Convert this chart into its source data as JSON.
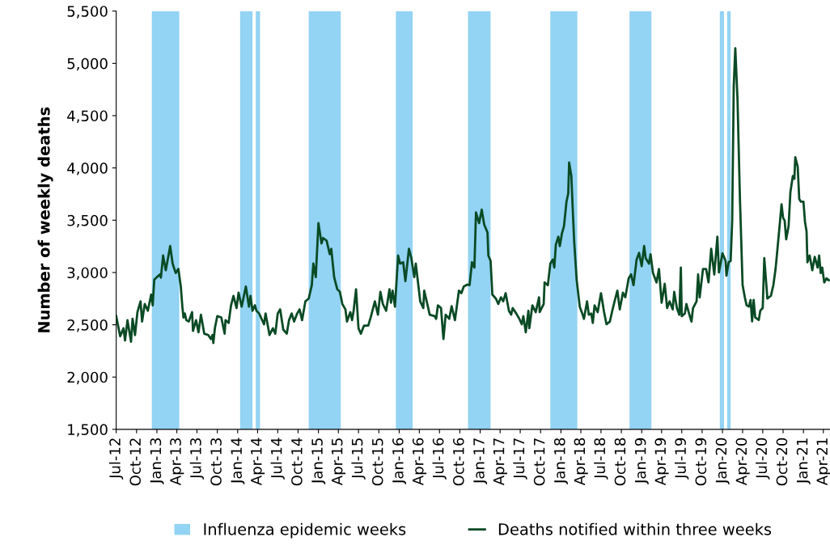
{
  "chart_data": {
    "type": "line",
    "ylabel": "Number of weekly deaths",
    "x": [
      "2012-07-01",
      "2012-07-19",
      "2012-08-03",
      "2012-08-10",
      "2012-08-21",
      "2012-09-06",
      "2012-09-13",
      "2012-09-24",
      "2012-10-05",
      "2012-10-19",
      "2012-10-26",
      "2012-11-07",
      "2012-11-21",
      "2012-12-06",
      "2012-12-13",
      "2012-12-20",
      "2013-01-01",
      "2013-01-15",
      "2013-01-19",
      "2013-01-29",
      "2013-02-10",
      "2013-03-02",
      "2013-03-13",
      "2013-03-27",
      "2013-04-08",
      "2013-04-19",
      "2013-04-26",
      "2013-05-01",
      "2013-05-07",
      "2013-05-14",
      "2013-05-25",
      "2013-06-09",
      "2013-06-13",
      "2013-06-27",
      "2013-07-08",
      "2013-07-19",
      "2013-08-03",
      "2013-08-21",
      "2013-09-02",
      "2013-09-09",
      "2013-09-13",
      "2013-09-20",
      "2013-10-01",
      "2013-10-19",
      "2013-11-03",
      "2013-11-07",
      "2013-11-21",
      "2013-12-02",
      "2013-12-13",
      "2013-12-27",
      "2014-01-05",
      "2014-01-19",
      "2014-02-07",
      "2014-02-21",
      "2014-02-28",
      "2014-03-09",
      "2014-03-20",
      "2014-03-27",
      "2014-04-08",
      "2014-04-19",
      "2014-04-30",
      "2014-05-07",
      "2014-05-25",
      "2014-06-09",
      "2014-06-20",
      "2014-07-01",
      "2014-07-12",
      "2014-07-26",
      "2014-08-11",
      "2014-08-21",
      "2014-09-02",
      "2014-09-13",
      "2014-09-27",
      "2014-10-08",
      "2014-10-19",
      "2014-11-03",
      "2014-11-18",
      "2014-12-02",
      "2014-12-09",
      "2014-12-20",
      "2015-01-01",
      "2015-01-15",
      "2015-01-22",
      "2015-02-07",
      "2015-02-21",
      "2015-02-28",
      "2015-03-13",
      "2015-03-27",
      "2015-04-08",
      "2015-04-19",
      "2015-05-03",
      "2015-05-10",
      "2015-05-25",
      "2015-06-02",
      "2015-06-09",
      "2015-06-20",
      "2015-07-01",
      "2015-07-12",
      "2015-07-26",
      "2015-08-14",
      "2015-08-25",
      "2015-09-13",
      "2015-09-27",
      "2015-10-08",
      "2015-10-19",
      "2015-11-03",
      "2015-11-18",
      "2015-11-25",
      "2015-12-02",
      "2015-12-13",
      "2015-12-27",
      "2016-01-05",
      "2016-01-19",
      "2016-01-29",
      "2016-02-14",
      "2016-02-25",
      "2016-03-09",
      "2016-03-16",
      "2016-04-05",
      "2016-04-19",
      "2016-04-23",
      "2016-05-07",
      "2016-05-18",
      "2016-06-09",
      "2016-06-16",
      "2016-06-24",
      "2016-07-08",
      "2016-07-19",
      "2016-07-29",
      "2016-08-14",
      "2016-08-25",
      "2016-09-09",
      "2016-09-27",
      "2016-10-08",
      "2016-10-19",
      "2016-11-03",
      "2016-11-14",
      "2016-11-25",
      "2016-12-06",
      "2016-12-13",
      "2016-12-27",
      "2017-01-08",
      "2017-01-19",
      "2017-02-03",
      "2017-02-07",
      "2017-02-17",
      "2017-02-25",
      "2017-03-13",
      "2017-03-24",
      "2017-04-05",
      "2017-04-15",
      "2017-04-26",
      "2017-05-11",
      "2017-05-21",
      "2017-05-28",
      "2017-06-13",
      "2017-06-27",
      "2017-07-08",
      "2017-07-15",
      "2017-07-26",
      "2017-08-07",
      "2017-08-11",
      "2017-08-25",
      "2017-09-09",
      "2017-09-24",
      "2017-09-27",
      "2017-10-15",
      "2017-10-19",
      "2017-11-03",
      "2017-11-14",
      "2017-11-25",
      "2017-12-02",
      "2017-12-09",
      "2017-12-20",
      "2017-12-27",
      "2018-01-05",
      "2018-01-15",
      "2018-01-26",
      "2018-02-03",
      "2018-02-07",
      "2018-02-17",
      "2018-02-25",
      "2018-03-02",
      "2018-03-13",
      "2018-03-27",
      "2018-04-05",
      "2018-04-15",
      "2018-04-29",
      "2018-05-07",
      "2018-05-18",
      "2018-05-25",
      "2018-06-02",
      "2018-06-16",
      "2018-07-01",
      "2018-07-15",
      "2018-07-26",
      "2018-08-10",
      "2018-08-21",
      "2018-09-02",
      "2018-09-13",
      "2018-09-24",
      "2018-10-08",
      "2018-10-19",
      "2018-11-03",
      "2018-11-14",
      "2018-11-25",
      "2018-12-09",
      "2018-12-20",
      "2019-01-01",
      "2019-01-12",
      "2019-01-19",
      "2019-02-03",
      "2019-02-10",
      "2019-02-21",
      "2019-03-09",
      "2019-03-20",
      "2019-04-01",
      "2019-04-15",
      "2019-04-26",
      "2019-05-07",
      "2019-05-21",
      "2019-05-28",
      "2019-06-09",
      "2019-06-20",
      "2019-06-27",
      "2019-07-01",
      "2019-07-15",
      "2019-07-22",
      "2019-08-03",
      "2019-08-14",
      "2019-08-21",
      "2019-09-06",
      "2019-09-13",
      "2019-09-20",
      "2019-10-05",
      "2019-10-19",
      "2019-10-30",
      "2019-11-11",
      "2019-11-25",
      "2019-12-09",
      "2019-12-16",
      "2020-01-01",
      "2020-01-15",
      "2020-01-19",
      "2020-01-29",
      "2020-02-07",
      "2020-02-14",
      "2020-02-21",
      "2020-02-28",
      "2020-03-09",
      "2020-03-20",
      "2020-04-01",
      "2020-04-11",
      "2020-04-19",
      "2020-04-29",
      "2020-05-07",
      "2020-05-14",
      "2020-05-21",
      "2020-05-28",
      "2020-06-13",
      "2020-06-20",
      "2020-07-01",
      "2020-07-08",
      "2020-07-22",
      "2020-08-07",
      "2020-08-18",
      "2020-08-28",
      "2020-09-13",
      "2020-09-24",
      "2020-10-01",
      "2020-10-08",
      "2020-10-15",
      "2020-10-26",
      "2020-11-03",
      "2020-11-14",
      "2020-11-21",
      "2020-11-25",
      "2020-12-06",
      "2020-12-13",
      "2020-12-20",
      "2021-01-01",
      "2021-01-08",
      "2021-01-15",
      "2021-01-19",
      "2021-01-29",
      "2021-02-10",
      "2021-02-21",
      "2021-03-06",
      "2021-03-13",
      "2021-03-20",
      "2021-03-27",
      "2021-04-05",
      "2021-04-15",
      "2021-04-26"
    ],
    "series": [
      {
        "name": "Deaths notified within three weeks",
        "color": "#0a4a24",
        "values": [
          2583,
          2390,
          2467,
          2350,
          2544,
          2338,
          2557,
          2402,
          2621,
          2724,
          2531,
          2699,
          2634,
          2789,
          2686,
          2931,
          2956,
          2982,
          2951,
          3162,
          3021,
          3253,
          3085,
          2995,
          3034,
          2866,
          2673,
          2570,
          2608,
          2544,
          2531,
          2621,
          2441,
          2544,
          2428,
          2596,
          2415,
          2402,
          2364,
          2402,
          2325,
          2467,
          2583,
          2570,
          2415,
          2544,
          2518,
          2686,
          2776,
          2660,
          2807,
          2673,
          2866,
          2673,
          2776,
          2634,
          2686,
          2634,
          2608,
          2557,
          2505,
          2608,
          2402,
          2467,
          2415,
          2608,
          2647,
          2454,
          2415,
          2544,
          2608,
          2531,
          2608,
          2647,
          2544,
          2724,
          2750,
          2879,
          3085,
          2956,
          3472,
          3278,
          3330,
          3304,
          3175,
          3227,
          2956,
          2840,
          2815,
          2699,
          2647,
          2531,
          2621,
          2544,
          2634,
          2840,
          2467,
          2415,
          2492,
          2492,
          2570,
          2724,
          2596,
          2815,
          2699,
          2634,
          2840,
          2711,
          2827,
          2673,
          3162,
          3085,
          3098,
          2918,
          3227,
          3137,
          2956,
          3085,
          2724,
          2660,
          2827,
          2699,
          2596,
          2583,
          2557,
          2686,
          2660,
          2364,
          2596,
          2557,
          2678,
          2544,
          2827,
          2802,
          2866,
          2884,
          2879,
          3098,
          3047,
          3575,
          3472,
          3601,
          3459,
          3382,
          3162,
          3111,
          2789,
          2750,
          2699,
          2763,
          2724,
          2802,
          2634,
          2596,
          2660,
          2608,
          2557,
          2505,
          2583,
          2428,
          2634,
          2467,
          2686,
          2621,
          2763,
          2621,
          2699,
          2905,
          2879,
          3085,
          3124,
          3047,
          3266,
          3343,
          3253,
          3369,
          3446,
          3678,
          3755,
          4052,
          3923,
          3523,
          3291,
          2931,
          2673,
          2621,
          2557,
          2724,
          2596,
          2608,
          2518,
          2686,
          2621,
          2802,
          2621,
          2505,
          2531,
          2634,
          2737,
          2827,
          2647,
          2807,
          2763,
          2943,
          2982,
          2879,
          3124,
          3188,
          3060,
          3253,
          3137,
          3085,
          3175,
          2995,
          2905,
          3034,
          2711,
          2892,
          2660,
          2724,
          2647,
          2815,
          2660,
          2596,
          3047,
          2583,
          2608,
          2699,
          2608,
          2531,
          2660,
          2724,
          2982,
          2763,
          3034,
          3034,
          2905,
          3227,
          2982,
          3343,
          3000,
          3183,
          3111,
          2970,
          3098,
          3111,
          3497,
          4784,
          5145,
          4656,
          3703,
          2880,
          2764,
          2687,
          2674,
          2738,
          2532,
          2738,
          2571,
          2545,
          2635,
          2661,
          3137,
          2751,
          2777,
          2880,
          3034,
          3394,
          3652,
          3523,
          3497,
          3317,
          3446,
          3768,
          3922,
          3896,
          4102,
          4012,
          3703,
          3678,
          3678,
          3484,
          3394,
          3098,
          3163,
          3021,
          3150,
          3047,
          3163,
          2995,
          3047,
          2905,
          2944,
          2926
        ]
      }
    ],
    "bands": [
      {
        "axis": "x",
        "from": "2012-12-09",
        "to": "2013-04-12",
        "label": "Influenza epidemic weeks",
        "color": "#93d3f3"
      },
      {
        "axis": "x",
        "from": "2014-01-12",
        "to": "2014-03-09",
        "color": "#93d3f3"
      },
      {
        "axis": "x",
        "from": "2014-03-24",
        "to": "2014-04-12",
        "color": "#93d3f3"
      },
      {
        "axis": "x",
        "from": "2014-11-18",
        "to": "2015-04-12",
        "color": "#93d3f3"
      },
      {
        "axis": "x",
        "from": "2015-12-17",
        "to": "2016-03-02",
        "color": "#93d3f3"
      },
      {
        "axis": "x",
        "from": "2016-11-07",
        "to": "2017-02-17",
        "color": "#93d3f3"
      },
      {
        "axis": "x",
        "from": "2017-11-14",
        "to": "2018-03-16",
        "color": "#93d3f3"
      },
      {
        "axis": "x",
        "from": "2018-11-07",
        "to": "2019-02-14",
        "color": "#93d3f3"
      },
      {
        "axis": "x",
        "from": "2019-12-20",
        "to": "2020-01-08",
        "color": "#93d3f3"
      },
      {
        "axis": "x",
        "from": "2020-01-22",
        "to": "2020-02-07",
        "color": "#93d3f3"
      }
    ],
    "xlim": [
      "2012-07-01",
      "2021-05-01"
    ],
    "xticks": [
      {
        "value": "2012-07-01",
        "label": "Jul-12"
      },
      {
        "value": "2012-10-01",
        "label": "Oct-12"
      },
      {
        "value": "2013-01-01",
        "label": "Jan-13"
      },
      {
        "value": "2013-04-01",
        "label": "Apr-13"
      },
      {
        "value": "2013-07-01",
        "label": "Jul-13"
      },
      {
        "value": "2013-10-01",
        "label": "Oct-13"
      },
      {
        "value": "2014-01-01",
        "label": "Jan-14"
      },
      {
        "value": "2014-04-01",
        "label": "Apr-14"
      },
      {
        "value": "2014-07-01",
        "label": "Jul-14"
      },
      {
        "value": "2014-10-01",
        "label": "Oct-14"
      },
      {
        "value": "2015-01-01",
        "label": "Jan-15"
      },
      {
        "value": "2015-04-01",
        "label": "Apr-15"
      },
      {
        "value": "2015-07-01",
        "label": "Jul-15"
      },
      {
        "value": "2015-10-01",
        "label": "Oct-15"
      },
      {
        "value": "2016-01-01",
        "label": "Jan-16"
      },
      {
        "value": "2016-04-01",
        "label": "Apr-16"
      },
      {
        "value": "2016-07-01",
        "label": "Jul-16"
      },
      {
        "value": "2016-10-01",
        "label": "Oct-16"
      },
      {
        "value": "2017-01-01",
        "label": "Jan-17"
      },
      {
        "value": "2017-04-01",
        "label": "Apr-17"
      },
      {
        "value": "2017-07-01",
        "label": "Jul-17"
      },
      {
        "value": "2017-10-01",
        "label": "Oct-17"
      },
      {
        "value": "2018-01-01",
        "label": "Jan-18"
      },
      {
        "value": "2018-04-01",
        "label": "Apr-18"
      },
      {
        "value": "2018-07-01",
        "label": "Jul-18"
      },
      {
        "value": "2018-10-01",
        "label": "Oct-18"
      },
      {
        "value": "2019-01-01",
        "label": "Jan-19"
      },
      {
        "value": "2019-04-01",
        "label": "Apr-19"
      },
      {
        "value": "2019-07-01",
        "label": "Jul-19"
      },
      {
        "value": "2019-10-01",
        "label": "Oct-19"
      },
      {
        "value": "2020-01-01",
        "label": "Jan-20"
      },
      {
        "value": "2020-04-01",
        "label": "Apr-20"
      },
      {
        "value": "2020-07-01",
        "label": "Jul-20"
      },
      {
        "value": "2020-10-01",
        "label": "Oct-20"
      },
      {
        "value": "2021-01-01",
        "label": "Jan-21"
      },
      {
        "value": "2021-04-01",
        "label": "Apr-21"
      }
    ],
    "ylim": [
      1500,
      5500
    ],
    "yticks": [
      {
        "value": 1500,
        "label": "1,500"
      },
      {
        "value": 2000,
        "label": "2,000"
      },
      {
        "value": 2500,
        "label": "2,500"
      },
      {
        "value": 3000,
        "label": "3,000"
      },
      {
        "value": 3500,
        "label": "3,500"
      },
      {
        "value": 4000,
        "label": "4,000"
      },
      {
        "value": 4500,
        "label": "4,500"
      },
      {
        "value": 5000,
        "label": "5,000"
      },
      {
        "value": 5500,
        "label": "5,500"
      }
    ],
    "grid": false,
    "legend": "bottom",
    "marker": "none",
    "line_style": "solid"
  }
}
